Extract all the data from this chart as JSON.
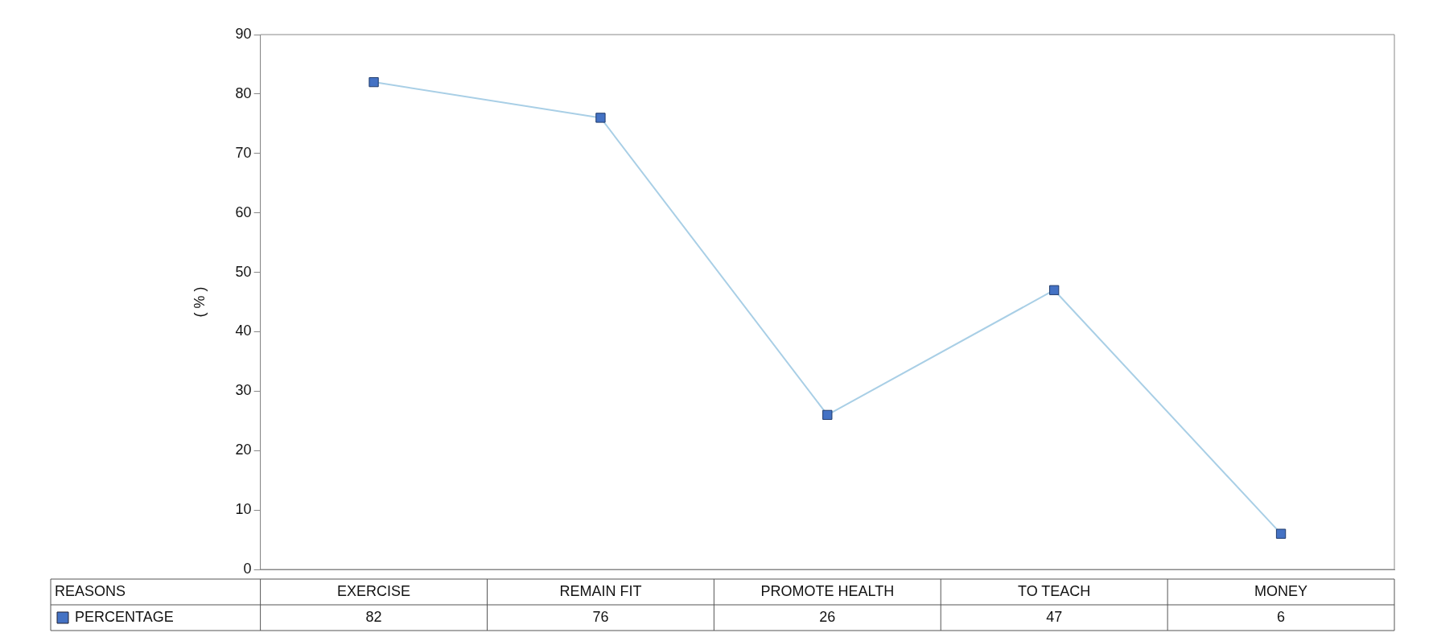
{
  "chart_data": {
    "type": "line",
    "annotations": [
      "REASONS"
    ],
    "ylabel": "( % )",
    "categories": [
      "EXERCISE",
      "REMAIN FIT",
      "PROMOTE HEALTH",
      "TO TEACH",
      "MONEY"
    ],
    "series": [
      {
        "name": "PERCENTAGE",
        "color": "#4472c4",
        "values": [
          82,
          76,
          26,
          47,
          6
        ]
      }
    ],
    "ylim": [
      0,
      90
    ],
    "yticks": [
      0,
      10,
      20,
      30,
      40,
      50,
      60,
      70,
      80,
      90
    ],
    "grid": false,
    "legend": "bottom left",
    "marker": "square",
    "line_style": "solid",
    "data_labels": true
  }
}
